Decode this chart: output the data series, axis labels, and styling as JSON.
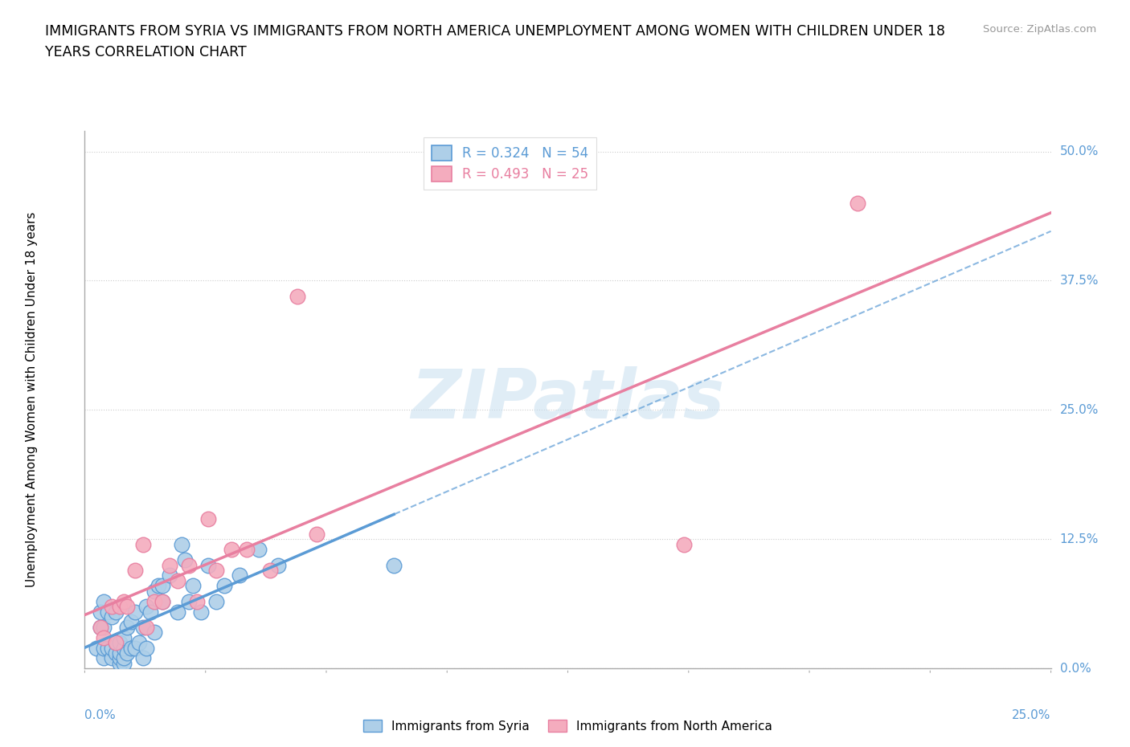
{
  "title_line1": "IMMIGRANTS FROM SYRIA VS IMMIGRANTS FROM NORTH AMERICA UNEMPLOYMENT AMONG WOMEN WITH CHILDREN UNDER 18",
  "title_line2": "YEARS CORRELATION CHART",
  "source_text": "Source: ZipAtlas.com",
  "ylabel": "Unemployment Among Women with Children Under 18 years",
  "xlim": [
    0.0,
    0.25
  ],
  "ylim": [
    0.0,
    0.52
  ],
  "ytick_values": [
    0.0,
    0.125,
    0.25,
    0.375,
    0.5
  ],
  "ytick_labels": [
    "0.0%",
    "12.5%",
    "25.0%",
    "37.5%",
    "50.0%"
  ],
  "xtick_count": 9,
  "legend_label1": "R = 0.324   N = 54",
  "legend_label2": "R = 0.493   N = 25",
  "color_syria_fill": "#AECFE8",
  "color_syria_edge": "#5B9BD5",
  "color_na_fill": "#F4ACBE",
  "color_na_edge": "#E87FA0",
  "color_axis_label": "#5B9BD5",
  "color_grid": "#CCCCCC",
  "color_spine": "#AAAAAA",
  "watermark_text": "ZIPatlas",
  "watermark_color": "#C8DFF0",
  "syria_x": [
    0.003,
    0.004,
    0.004,
    0.005,
    0.005,
    0.005,
    0.005,
    0.006,
    0.006,
    0.007,
    0.007,
    0.007,
    0.008,
    0.008,
    0.008,
    0.009,
    0.009,
    0.009,
    0.009,
    0.01,
    0.01,
    0.01,
    0.01,
    0.011,
    0.011,
    0.012,
    0.012,
    0.013,
    0.013,
    0.014,
    0.015,
    0.015,
    0.016,
    0.016,
    0.017,
    0.018,
    0.018,
    0.019,
    0.02,
    0.02,
    0.022,
    0.024,
    0.025,
    0.026,
    0.027,
    0.028,
    0.03,
    0.032,
    0.034,
    0.036,
    0.04,
    0.045,
    0.05,
    0.08
  ],
  "syria_y": [
    0.02,
    0.04,
    0.055,
    0.01,
    0.02,
    0.04,
    0.065,
    0.02,
    0.055,
    0.01,
    0.02,
    0.05,
    0.015,
    0.025,
    0.055,
    0.005,
    0.01,
    0.015,
    0.025,
    0.005,
    0.01,
    0.02,
    0.03,
    0.015,
    0.04,
    0.02,
    0.045,
    0.02,
    0.055,
    0.025,
    0.01,
    0.04,
    0.02,
    0.06,
    0.055,
    0.035,
    0.075,
    0.08,
    0.065,
    0.08,
    0.09,
    0.055,
    0.12,
    0.105,
    0.065,
    0.08,
    0.055,
    0.1,
    0.065,
    0.08,
    0.09,
    0.115,
    0.1,
    0.1
  ],
  "na_x": [
    0.004,
    0.005,
    0.007,
    0.008,
    0.009,
    0.01,
    0.011,
    0.013,
    0.015,
    0.016,
    0.018,
    0.02,
    0.022,
    0.024,
    0.027,
    0.029,
    0.032,
    0.034,
    0.038,
    0.042,
    0.048,
    0.055,
    0.06,
    0.155,
    0.2
  ],
  "na_y": [
    0.04,
    0.03,
    0.06,
    0.025,
    0.06,
    0.065,
    0.06,
    0.095,
    0.12,
    0.04,
    0.065,
    0.065,
    0.1,
    0.085,
    0.1,
    0.065,
    0.145,
    0.095,
    0.115,
    0.115,
    0.095,
    0.36,
    0.13,
    0.12,
    0.45
  ],
  "syria_line_solid_end": 0.08,
  "na_line_x_start": 0.003,
  "na_line_x_end": 0.25
}
